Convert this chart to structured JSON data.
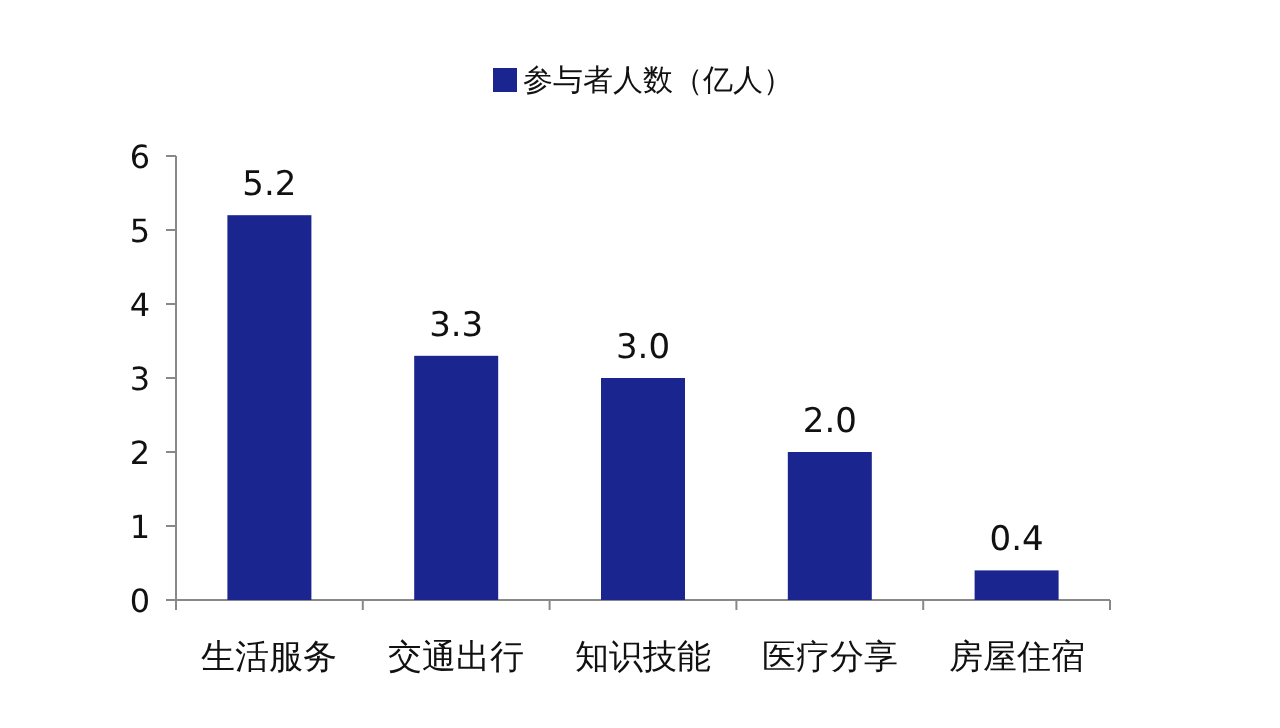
{
  "chart_data": {
    "type": "bar",
    "categories": [
      "生活服务",
      "交通出行",
      "知识技能",
      "医疗分享",
      "房屋住宿"
    ],
    "series": [
      {
        "name": "参与者人数（亿人）",
        "color": "#1a2590",
        "values": [
          5.2,
          3.3,
          3.0,
          2.0,
          0.4
        ],
        "value_labels": [
          "5.2",
          "3.3",
          "3.0",
          "2.0",
          "0.4"
        ]
      }
    ],
    "ylim": [
      0,
      6
    ],
    "yticks": [
      0,
      1,
      2,
      3,
      4,
      5,
      6
    ],
    "legend": "top",
    "grid": false
  }
}
